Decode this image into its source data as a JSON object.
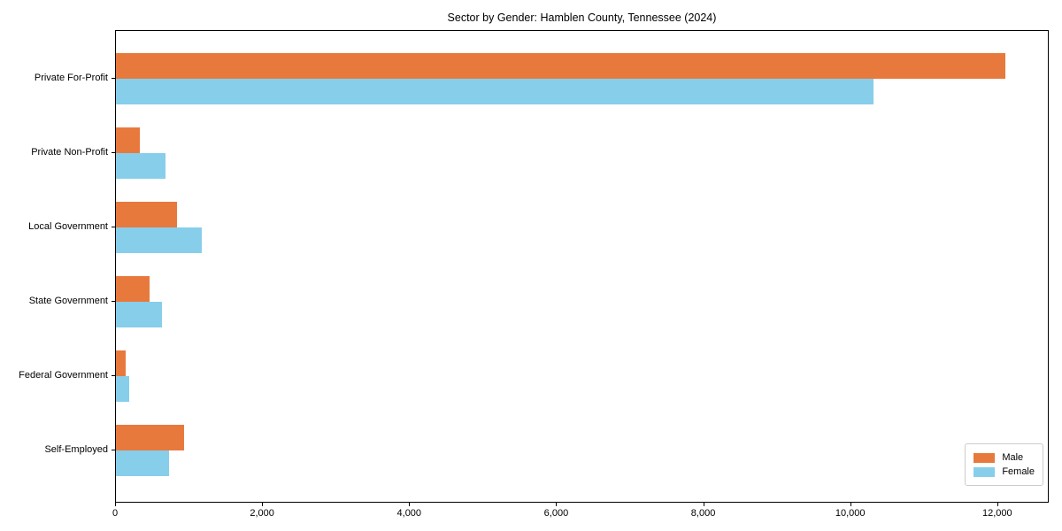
{
  "chart_data": {
    "type": "bar",
    "orientation": "horizontal",
    "title": "Sector by Gender: Hamblen County, Tennessee (2024)",
    "categories": [
      "Private For-Profit",
      "Private Non-Profit",
      "Local Government",
      "State Government",
      "Federal Government",
      "Self-Employed"
    ],
    "series": [
      {
        "name": "Male",
        "color": "#e8793d",
        "values": [
          12100,
          320,
          830,
          460,
          130,
          930
        ]
      },
      {
        "name": "Female",
        "color": "#87ceeb",
        "values": [
          10300,
          680,
          1170,
          620,
          180,
          720
        ]
      }
    ],
    "xlabel": "",
    "ylabel": "",
    "xlim": [
      0,
      12700
    ],
    "xticks": [
      0,
      2000,
      4000,
      6000,
      8000,
      10000,
      12000
    ],
    "xtick_labels": [
      "0",
      "2,000",
      "4,000",
      "6,000",
      "8,000",
      "10,000",
      "12,000"
    ],
    "legend_position": "lower right",
    "grid": false,
    "background_color": "#ffffff",
    "axis_color": "#000000"
  }
}
